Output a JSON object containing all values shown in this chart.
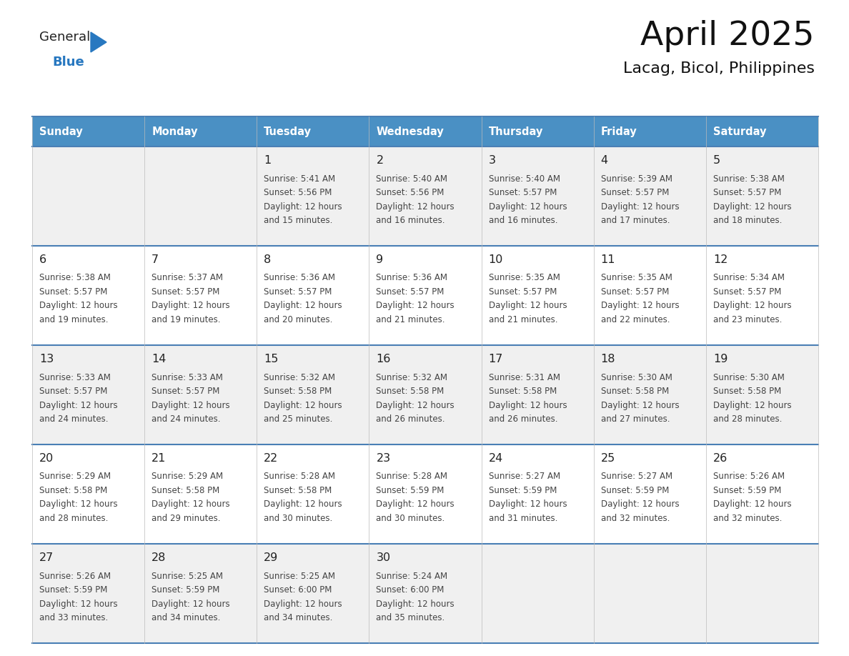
{
  "title": "April 2025",
  "subtitle": "Lacag, Bicol, Philippines",
  "header_bg_color": "#4a90c4",
  "header_text_color": "#ffffff",
  "weekdays": [
    "Sunday",
    "Monday",
    "Tuesday",
    "Wednesday",
    "Thursday",
    "Friday",
    "Saturday"
  ],
  "row_bg_even": "#f0f0f0",
  "row_bg_odd": "#ffffff",
  "cell_border_color": "#4a7fb5",
  "logo_general_color": "#222222",
  "logo_blue_color": "#2878c0",
  "logo_triangle_color": "#2878c0",
  "title_color": "#111111",
  "subtitle_color": "#111111",
  "day_text_color": "#222222",
  "info_text_color": "#444444",
  "days": [
    {
      "day": "",
      "col": 0,
      "row": 0,
      "sunrise": "",
      "sunset": "",
      "daylight_line1": "",
      "daylight_line2": ""
    },
    {
      "day": "",
      "col": 1,
      "row": 0,
      "sunrise": "",
      "sunset": "",
      "daylight_line1": "",
      "daylight_line2": ""
    },
    {
      "day": "1",
      "col": 2,
      "row": 0,
      "sunrise": "5:41 AM",
      "sunset": "5:56 PM",
      "daylight_line1": "12 hours",
      "daylight_line2": "and 15 minutes."
    },
    {
      "day": "2",
      "col": 3,
      "row": 0,
      "sunrise": "5:40 AM",
      "sunset": "5:56 PM",
      "daylight_line1": "12 hours",
      "daylight_line2": "and 16 minutes."
    },
    {
      "day": "3",
      "col": 4,
      "row": 0,
      "sunrise": "5:40 AM",
      "sunset": "5:57 PM",
      "daylight_line1": "12 hours",
      "daylight_line2": "and 16 minutes."
    },
    {
      "day": "4",
      "col": 5,
      "row": 0,
      "sunrise": "5:39 AM",
      "sunset": "5:57 PM",
      "daylight_line1": "12 hours",
      "daylight_line2": "and 17 minutes."
    },
    {
      "day": "5",
      "col": 6,
      "row": 0,
      "sunrise": "5:38 AM",
      "sunset": "5:57 PM",
      "daylight_line1": "12 hours",
      "daylight_line2": "and 18 minutes."
    },
    {
      "day": "6",
      "col": 0,
      "row": 1,
      "sunrise": "5:38 AM",
      "sunset": "5:57 PM",
      "daylight_line1": "12 hours",
      "daylight_line2": "and 19 minutes."
    },
    {
      "day": "7",
      "col": 1,
      "row": 1,
      "sunrise": "5:37 AM",
      "sunset": "5:57 PM",
      "daylight_line1": "12 hours",
      "daylight_line2": "and 19 minutes."
    },
    {
      "day": "8",
      "col": 2,
      "row": 1,
      "sunrise": "5:36 AM",
      "sunset": "5:57 PM",
      "daylight_line1": "12 hours",
      "daylight_line2": "and 20 minutes."
    },
    {
      "day": "9",
      "col": 3,
      "row": 1,
      "sunrise": "5:36 AM",
      "sunset": "5:57 PM",
      "daylight_line1": "12 hours",
      "daylight_line2": "and 21 minutes."
    },
    {
      "day": "10",
      "col": 4,
      "row": 1,
      "sunrise": "5:35 AM",
      "sunset": "5:57 PM",
      "daylight_line1": "12 hours",
      "daylight_line2": "and 21 minutes."
    },
    {
      "day": "11",
      "col": 5,
      "row": 1,
      "sunrise": "5:35 AM",
      "sunset": "5:57 PM",
      "daylight_line1": "12 hours",
      "daylight_line2": "and 22 minutes."
    },
    {
      "day": "12",
      "col": 6,
      "row": 1,
      "sunrise": "5:34 AM",
      "sunset": "5:57 PM",
      "daylight_line1": "12 hours",
      "daylight_line2": "and 23 minutes."
    },
    {
      "day": "13",
      "col": 0,
      "row": 2,
      "sunrise": "5:33 AM",
      "sunset": "5:57 PM",
      "daylight_line1": "12 hours",
      "daylight_line2": "and 24 minutes."
    },
    {
      "day": "14",
      "col": 1,
      "row": 2,
      "sunrise": "5:33 AM",
      "sunset": "5:57 PM",
      "daylight_line1": "12 hours",
      "daylight_line2": "and 24 minutes."
    },
    {
      "day": "15",
      "col": 2,
      "row": 2,
      "sunrise": "5:32 AM",
      "sunset": "5:58 PM",
      "daylight_line1": "12 hours",
      "daylight_line2": "and 25 minutes."
    },
    {
      "day": "16",
      "col": 3,
      "row": 2,
      "sunrise": "5:32 AM",
      "sunset": "5:58 PM",
      "daylight_line1": "12 hours",
      "daylight_line2": "and 26 minutes."
    },
    {
      "day": "17",
      "col": 4,
      "row": 2,
      "sunrise": "5:31 AM",
      "sunset": "5:58 PM",
      "daylight_line1": "12 hours",
      "daylight_line2": "and 26 minutes."
    },
    {
      "day": "18",
      "col": 5,
      "row": 2,
      "sunrise": "5:30 AM",
      "sunset": "5:58 PM",
      "daylight_line1": "12 hours",
      "daylight_line2": "and 27 minutes."
    },
    {
      "day": "19",
      "col": 6,
      "row": 2,
      "sunrise": "5:30 AM",
      "sunset": "5:58 PM",
      "daylight_line1": "12 hours",
      "daylight_line2": "and 28 minutes."
    },
    {
      "day": "20",
      "col": 0,
      "row": 3,
      "sunrise": "5:29 AM",
      "sunset": "5:58 PM",
      "daylight_line1": "12 hours",
      "daylight_line2": "and 28 minutes."
    },
    {
      "day": "21",
      "col": 1,
      "row": 3,
      "sunrise": "5:29 AM",
      "sunset": "5:58 PM",
      "daylight_line1": "12 hours",
      "daylight_line2": "and 29 minutes."
    },
    {
      "day": "22",
      "col": 2,
      "row": 3,
      "sunrise": "5:28 AM",
      "sunset": "5:58 PM",
      "daylight_line1": "12 hours",
      "daylight_line2": "and 30 minutes."
    },
    {
      "day": "23",
      "col": 3,
      "row": 3,
      "sunrise": "5:28 AM",
      "sunset": "5:59 PM",
      "daylight_line1": "12 hours",
      "daylight_line2": "and 30 minutes."
    },
    {
      "day": "24",
      "col": 4,
      "row": 3,
      "sunrise": "5:27 AM",
      "sunset": "5:59 PM",
      "daylight_line1": "12 hours",
      "daylight_line2": "and 31 minutes."
    },
    {
      "day": "25",
      "col": 5,
      "row": 3,
      "sunrise": "5:27 AM",
      "sunset": "5:59 PM",
      "daylight_line1": "12 hours",
      "daylight_line2": "and 32 minutes."
    },
    {
      "day": "26",
      "col": 6,
      "row": 3,
      "sunrise": "5:26 AM",
      "sunset": "5:59 PM",
      "daylight_line1": "12 hours",
      "daylight_line2": "and 32 minutes."
    },
    {
      "day": "27",
      "col": 0,
      "row": 4,
      "sunrise": "5:26 AM",
      "sunset": "5:59 PM",
      "daylight_line1": "12 hours",
      "daylight_line2": "and 33 minutes."
    },
    {
      "day": "28",
      "col": 1,
      "row": 4,
      "sunrise": "5:25 AM",
      "sunset": "5:59 PM",
      "daylight_line1": "12 hours",
      "daylight_line2": "and 34 minutes."
    },
    {
      "day": "29",
      "col": 2,
      "row": 4,
      "sunrise": "5:25 AM",
      "sunset": "6:00 PM",
      "daylight_line1": "12 hours",
      "daylight_line2": "and 34 minutes."
    },
    {
      "day": "30",
      "col": 3,
      "row": 4,
      "sunrise": "5:24 AM",
      "sunset": "6:00 PM",
      "daylight_line1": "12 hours",
      "daylight_line2": "and 35 minutes."
    },
    {
      "day": "",
      "col": 4,
      "row": 4,
      "sunrise": "",
      "sunset": "",
      "daylight_line1": "",
      "daylight_line2": ""
    },
    {
      "day": "",
      "col": 5,
      "row": 4,
      "sunrise": "",
      "sunset": "",
      "daylight_line1": "",
      "daylight_line2": ""
    },
    {
      "day": "",
      "col": 6,
      "row": 4,
      "sunrise": "",
      "sunset": "",
      "daylight_line1": "",
      "daylight_line2": ""
    }
  ]
}
